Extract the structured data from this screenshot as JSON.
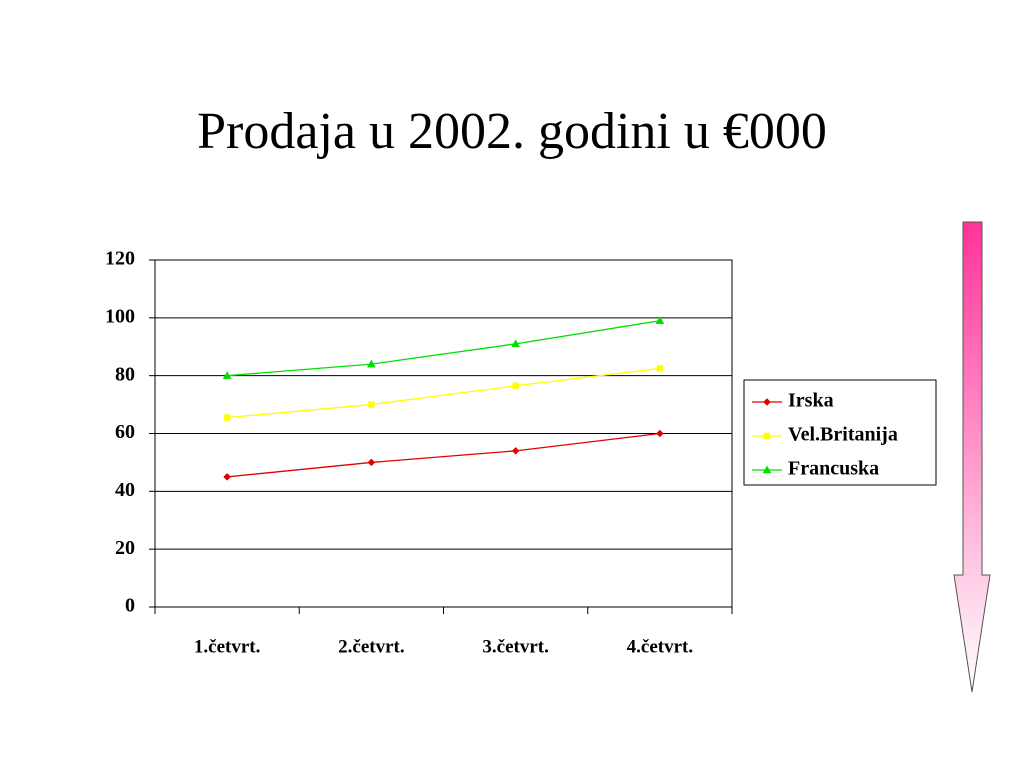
{
  "chart_data": {
    "type": "line",
    "title": "Prodaja u 2002. godini u €000",
    "categories": [
      "1.četvrt.",
      "2.četvrt.",
      "3.četvrt.",
      "4.četvrt."
    ],
    "series": [
      {
        "name": "Irska",
        "color": "#e00000",
        "marker": "diamond",
        "values": [
          45,
          50,
          54,
          60
        ]
      },
      {
        "name": "Vel.Britanija",
        "color": "#ffff00",
        "marker": "square",
        "values": [
          65.5,
          70,
          76.5,
          82.5
        ]
      },
      {
        "name": "Francuska",
        "color": "#00e000",
        "marker": "triangle",
        "values": [
          80,
          84,
          91,
          99
        ]
      }
    ],
    "ylim": [
      0,
      120
    ],
    "yticks": [
      0,
      20,
      40,
      60,
      80,
      100,
      120
    ],
    "grid": true
  }
}
